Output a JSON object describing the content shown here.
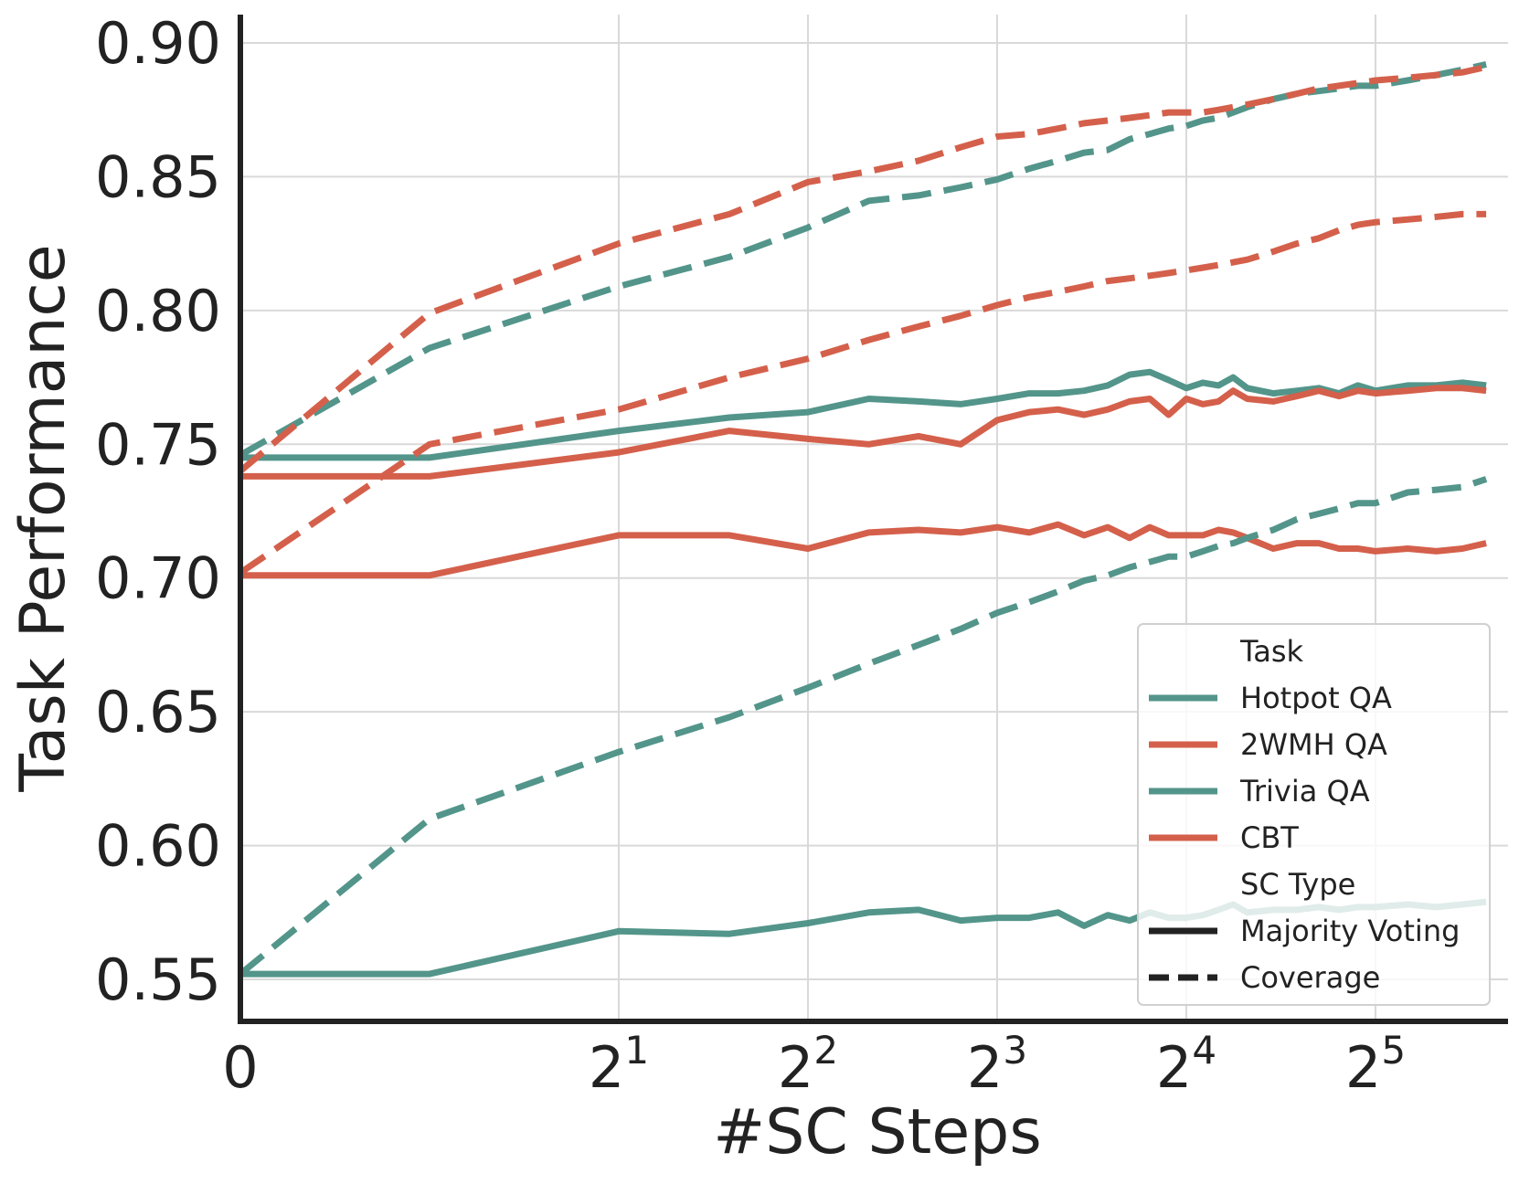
{
  "colors": {
    "teal": "#53958a",
    "coral": "#d4604b",
    "axis": "#222222",
    "grid": "#d9d9d9",
    "legend_border": "#d0d0d0"
  },
  "chart_data": {
    "type": "line",
    "xlabel": "#SC Steps",
    "ylabel": "Task Performance",
    "xscale": "symlog base 2",
    "xlim": [
      0,
      50
    ],
    "ylim": [
      0.545,
      0.91
    ],
    "grid": true,
    "legend_position": "lower right",
    "y_ticks": [
      "0.90",
      "0.85",
      "0.80",
      "0.75",
      "0.70",
      "0.65",
      "0.60",
      "0.55"
    ],
    "y_tick_values": [
      0.9,
      0.85,
      0.8,
      0.75,
      0.7,
      0.65,
      0.6,
      0.55
    ],
    "x_ticks": [
      {
        "value": 0,
        "base": "0",
        "exp": ""
      },
      {
        "value": 2,
        "base": "2",
        "exp": "1"
      },
      {
        "value": 4,
        "base": "2",
        "exp": "2"
      },
      {
        "value": 8,
        "base": "2",
        "exp": "3"
      },
      {
        "value": 16,
        "base": "2",
        "exp": "4"
      },
      {
        "value": 32,
        "base": "2",
        "exp": "5"
      }
    ],
    "legend": {
      "title_task": "Task",
      "tasks": [
        {
          "label": "Hotpot QA",
          "color": "teal"
        },
        {
          "label": "2WMH QA",
          "color": "coral"
        },
        {
          "label": "Trivia QA",
          "color": "teal"
        },
        {
          "label": "CBT",
          "color": "coral"
        }
      ],
      "title_type": "SC Type",
      "types": [
        {
          "label": "Majority Voting",
          "style": "solid"
        },
        {
          "label": "Coverage",
          "style": "dashed"
        }
      ]
    },
    "series": [
      {
        "task": "Hotpot QA",
        "sc_type": "Majority Voting",
        "color": "teal",
        "style": "solid",
        "points": [
          [
            0,
            0.745
          ],
          [
            1,
            0.745
          ],
          [
            2,
            0.755
          ],
          [
            3,
            0.76
          ],
          [
            4,
            0.762
          ],
          [
            5,
            0.767
          ],
          [
            6,
            0.766
          ],
          [
            7,
            0.765
          ],
          [
            8,
            0.767
          ],
          [
            9,
            0.769
          ],
          [
            10,
            0.769
          ],
          [
            11,
            0.77
          ],
          [
            12,
            0.772
          ],
          [
            13,
            0.776
          ],
          [
            14,
            0.777
          ],
          [
            15,
            0.774
          ],
          [
            16,
            0.771
          ],
          [
            17,
            0.773
          ],
          [
            18,
            0.772
          ],
          [
            19,
            0.775
          ],
          [
            20,
            0.771
          ],
          [
            22,
            0.769
          ],
          [
            24,
            0.77
          ],
          [
            26,
            0.771
          ],
          [
            28,
            0.769
          ],
          [
            30,
            0.772
          ],
          [
            32,
            0.77
          ],
          [
            36,
            0.772
          ],
          [
            40,
            0.772
          ],
          [
            44,
            0.773
          ],
          [
            48,
            0.772
          ]
        ]
      },
      {
        "task": "2WMH QA",
        "sc_type": "Majority Voting",
        "color": "coral",
        "style": "solid",
        "points": [
          [
            0,
            0.738
          ],
          [
            1,
            0.738
          ],
          [
            2,
            0.747
          ],
          [
            3,
            0.755
          ],
          [
            4,
            0.752
          ],
          [
            5,
            0.75
          ],
          [
            6,
            0.753
          ],
          [
            7,
            0.75
          ],
          [
            8,
            0.759
          ],
          [
            9,
            0.762
          ],
          [
            10,
            0.763
          ],
          [
            11,
            0.761
          ],
          [
            12,
            0.763
          ],
          [
            13,
            0.766
          ],
          [
            14,
            0.767
          ],
          [
            15,
            0.761
          ],
          [
            16,
            0.767
          ],
          [
            17,
            0.765
          ],
          [
            18,
            0.766
          ],
          [
            19,
            0.77
          ],
          [
            20,
            0.767
          ],
          [
            22,
            0.766
          ],
          [
            24,
            0.768
          ],
          [
            26,
            0.77
          ],
          [
            28,
            0.768
          ],
          [
            30,
            0.77
          ],
          [
            32,
            0.769
          ],
          [
            36,
            0.77
          ],
          [
            40,
            0.771
          ],
          [
            44,
            0.771
          ],
          [
            48,
            0.77
          ]
        ]
      },
      {
        "task": "Trivia QA",
        "sc_type": "Majority Voting",
        "color": "teal",
        "style": "solid",
        "points": [
          [
            0,
            0.552
          ],
          [
            1,
            0.552
          ],
          [
            2,
            0.568
          ],
          [
            3,
            0.567
          ],
          [
            4,
            0.571
          ],
          [
            5,
            0.575
          ],
          [
            6,
            0.576
          ],
          [
            7,
            0.572
          ],
          [
            8,
            0.573
          ],
          [
            9,
            0.573
          ],
          [
            10,
            0.575
          ],
          [
            11,
            0.57
          ],
          [
            12,
            0.574
          ],
          [
            13,
            0.572
          ],
          [
            14,
            0.575
          ],
          [
            15,
            0.573
          ],
          [
            16,
            0.573
          ],
          [
            17,
            0.574
          ],
          [
            18,
            0.576
          ],
          [
            19,
            0.578
          ],
          [
            20,
            0.575
          ],
          [
            22,
            0.576
          ],
          [
            24,
            0.576
          ],
          [
            26,
            0.577
          ],
          [
            28,
            0.576
          ],
          [
            30,
            0.577
          ],
          [
            32,
            0.577
          ],
          [
            36,
            0.578
          ],
          [
            40,
            0.577
          ],
          [
            44,
            0.578
          ],
          [
            48,
            0.579
          ]
        ]
      },
      {
        "task": "CBT",
        "sc_type": "Majority Voting",
        "color": "coral",
        "style": "solid",
        "points": [
          [
            0,
            0.701
          ],
          [
            1,
            0.701
          ],
          [
            2,
            0.716
          ],
          [
            3,
            0.716
          ],
          [
            4,
            0.711
          ],
          [
            5,
            0.717
          ],
          [
            6,
            0.718
          ],
          [
            7,
            0.717
          ],
          [
            8,
            0.719
          ],
          [
            9,
            0.717
          ],
          [
            10,
            0.72
          ],
          [
            11,
            0.716
          ],
          [
            12,
            0.719
          ],
          [
            13,
            0.715
          ],
          [
            14,
            0.719
          ],
          [
            15,
            0.716
          ],
          [
            16,
            0.716
          ],
          [
            17,
            0.716
          ],
          [
            18,
            0.718
          ],
          [
            19,
            0.717
          ],
          [
            20,
            0.715
          ],
          [
            22,
            0.711
          ],
          [
            24,
            0.713
          ],
          [
            26,
            0.713
          ],
          [
            28,
            0.711
          ],
          [
            30,
            0.711
          ],
          [
            32,
            0.71
          ],
          [
            36,
            0.711
          ],
          [
            40,
            0.71
          ],
          [
            44,
            0.711
          ],
          [
            48,
            0.713
          ]
        ]
      },
      {
        "task": "Hotpot QA",
        "sc_type": "Coverage",
        "color": "teal",
        "style": "dashed",
        "points": [
          [
            0,
            0.746
          ],
          [
            1,
            0.786
          ],
          [
            2,
            0.809
          ],
          [
            3,
            0.82
          ],
          [
            4,
            0.831
          ],
          [
            5,
            0.841
          ],
          [
            6,
            0.843
          ],
          [
            7,
            0.846
          ],
          [
            8,
            0.849
          ],
          [
            9,
            0.853
          ],
          [
            10,
            0.856
          ],
          [
            11,
            0.859
          ],
          [
            12,
            0.86
          ],
          [
            13,
            0.864
          ],
          [
            14,
            0.866
          ],
          [
            15,
            0.868
          ],
          [
            16,
            0.869
          ],
          [
            17,
            0.871
          ],
          [
            18,
            0.872
          ],
          [
            19,
            0.874
          ],
          [
            20,
            0.876
          ],
          [
            22,
            0.879
          ],
          [
            24,
            0.881
          ],
          [
            26,
            0.882
          ],
          [
            28,
            0.883
          ],
          [
            30,
            0.884
          ],
          [
            32,
            0.884
          ],
          [
            36,
            0.886
          ],
          [
            40,
            0.888
          ],
          [
            44,
            0.89
          ],
          [
            48,
            0.892
          ]
        ]
      },
      {
        "task": "2WMH QA",
        "sc_type": "Coverage",
        "color": "coral",
        "style": "dashed",
        "points": [
          [
            0,
            0.74
          ],
          [
            1,
            0.799
          ],
          [
            2,
            0.825
          ],
          [
            3,
            0.836
          ],
          [
            4,
            0.848
          ],
          [
            5,
            0.852
          ],
          [
            6,
            0.856
          ],
          [
            7,
            0.861
          ],
          [
            8,
            0.865
          ],
          [
            9,
            0.866
          ],
          [
            10,
            0.868
          ],
          [
            11,
            0.87
          ],
          [
            12,
            0.871
          ],
          [
            13,
            0.872
          ],
          [
            14,
            0.873
          ],
          [
            15,
            0.874
          ],
          [
            16,
            0.874
          ],
          [
            17,
            0.874
          ],
          [
            18,
            0.875
          ],
          [
            19,
            0.876
          ],
          [
            20,
            0.877
          ],
          [
            22,
            0.879
          ],
          [
            24,
            0.881
          ],
          [
            26,
            0.883
          ],
          [
            28,
            0.884
          ],
          [
            30,
            0.885
          ],
          [
            32,
            0.886
          ],
          [
            36,
            0.887
          ],
          [
            40,
            0.888
          ],
          [
            44,
            0.889
          ],
          [
            48,
            0.891
          ]
        ]
      },
      {
        "task": "Trivia QA",
        "sc_type": "Coverage",
        "color": "teal",
        "style": "dashed",
        "points": [
          [
            0,
            0.552
          ],
          [
            1,
            0.61
          ],
          [
            2,
            0.635
          ],
          [
            3,
            0.648
          ],
          [
            4,
            0.659
          ],
          [
            5,
            0.668
          ],
          [
            6,
            0.675
          ],
          [
            7,
            0.681
          ],
          [
            8,
            0.687
          ],
          [
            9,
            0.691
          ],
          [
            10,
            0.695
          ],
          [
            11,
            0.699
          ],
          [
            12,
            0.701
          ],
          [
            13,
            0.704
          ],
          [
            14,
            0.706
          ],
          [
            15,
            0.708
          ],
          [
            16,
            0.708
          ],
          [
            17,
            0.71
          ],
          [
            18,
            0.712
          ],
          [
            19,
            0.713
          ],
          [
            20,
            0.715
          ],
          [
            22,
            0.718
          ],
          [
            24,
            0.722
          ],
          [
            26,
            0.724
          ],
          [
            28,
            0.726
          ],
          [
            30,
            0.728
          ],
          [
            32,
            0.728
          ],
          [
            36,
            0.732
          ],
          [
            40,
            0.733
          ],
          [
            44,
            0.734
          ],
          [
            48,
            0.737
          ]
        ]
      },
      {
        "task": "CBT",
        "sc_type": "Coverage",
        "color": "coral",
        "style": "dashed",
        "points": [
          [
            0,
            0.702
          ],
          [
            1,
            0.75
          ],
          [
            2,
            0.763
          ],
          [
            3,
            0.775
          ],
          [
            4,
            0.782
          ],
          [
            5,
            0.789
          ],
          [
            6,
            0.794
          ],
          [
            7,
            0.798
          ],
          [
            8,
            0.802
          ],
          [
            9,
            0.805
          ],
          [
            10,
            0.807
          ],
          [
            11,
            0.809
          ],
          [
            12,
            0.811
          ],
          [
            13,
            0.812
          ],
          [
            14,
            0.813
          ],
          [
            15,
            0.814
          ],
          [
            16,
            0.815
          ],
          [
            17,
            0.816
          ],
          [
            18,
            0.817
          ],
          [
            19,
            0.818
          ],
          [
            20,
            0.819
          ],
          [
            22,
            0.822
          ],
          [
            24,
            0.825
          ],
          [
            26,
            0.827
          ],
          [
            28,
            0.83
          ],
          [
            30,
            0.832
          ],
          [
            32,
            0.833
          ],
          [
            36,
            0.834
          ],
          [
            40,
            0.835
          ],
          [
            44,
            0.836
          ],
          [
            48,
            0.836
          ]
        ]
      }
    ]
  }
}
